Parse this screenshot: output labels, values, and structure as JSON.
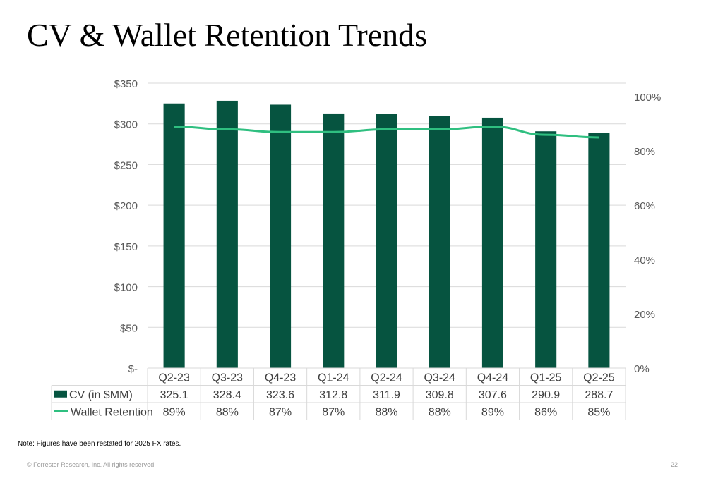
{
  "slide": {
    "title": "CV & Wallet Retention Trends",
    "note": "Note: Figures have been restated for 2025 FX rates.",
    "copyright": "© Forrester Research, Inc. All rights reserved.",
    "page_number": "22"
  },
  "chart_data": {
    "type": "bar",
    "title": "",
    "categories": [
      "Q2-23",
      "Q3-23",
      "Q4-23",
      "Q1-24",
      "Q2-24",
      "Q3-24",
      "Q4-24",
      "Q1-25",
      "Q2-25"
    ],
    "series": [
      {
        "name": "CV (in $MM)",
        "type": "bar",
        "axis": "left",
        "color": "#065440",
        "values": [
          325.1,
          328.4,
          323.6,
          312.8,
          311.9,
          309.8,
          307.6,
          290.9,
          288.7
        ],
        "labels": [
          "325.1",
          "328.4",
          "323.6",
          "312.8",
          "311.9",
          "309.8",
          "307.6",
          "290.9",
          "288.7"
        ]
      },
      {
        "name": "Wallet Retention",
        "type": "line",
        "axis": "right",
        "color": "#2fbf80",
        "values": [
          89,
          88,
          87,
          87,
          88,
          88,
          89,
          86,
          85
        ],
        "labels": [
          "89%",
          "88%",
          "87%",
          "87%",
          "88%",
          "88%",
          "89%",
          "86%",
          "85%"
        ]
      }
    ],
    "y_left": {
      "ylim": [
        0,
        350
      ],
      "ticks": [
        0,
        50,
        100,
        150,
        200,
        250,
        300,
        350
      ],
      "tick_labels": [
        "$-",
        "$50",
        "$100",
        "$150",
        "$200",
        "$250",
        "$300",
        "$350"
      ]
    },
    "y_right": {
      "ylim": [
        0,
        105
      ],
      "ticks": [
        0,
        20,
        40,
        60,
        80,
        100
      ],
      "tick_labels": [
        "0%",
        "20%",
        "40%",
        "60%",
        "80%",
        "100%"
      ]
    },
    "grid": true,
    "legend": "data-table"
  }
}
